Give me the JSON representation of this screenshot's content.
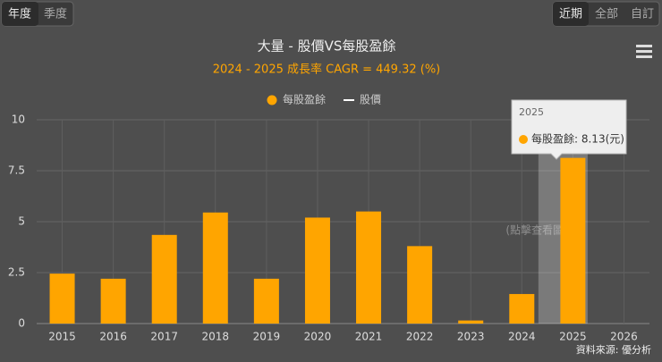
{
  "buttons": {
    "period": [
      "年度",
      "季度"
    ],
    "range": [
      "近期",
      "全部",
      "自訂"
    ]
  },
  "chart_data": {
    "type": "bar",
    "title": "大量 - 股價VS每股盈餘",
    "subtitle": "2024 - 2025 成長率 CAGR = 449.32 (%)",
    "categories": [
      "2015",
      "2016",
      "2017",
      "2018",
      "2019",
      "2020",
      "2021",
      "2022",
      "2023",
      "2024",
      "2025",
      "2026"
    ],
    "series": [
      {
        "name": "每股盈餘",
        "color": "#ffa500",
        "values": [
          2.45,
          2.2,
          4.35,
          5.45,
          2.2,
          5.2,
          5.5,
          3.8,
          0.15,
          1.45,
          8.13,
          null
        ]
      },
      {
        "name": "股價",
        "color": "#ffffff",
        "values": [
          null,
          null,
          null,
          null,
          null,
          null,
          null,
          null,
          null,
          null,
          null,
          null
        ]
      }
    ],
    "ylim": [
      0,
      10
    ],
    "yticks": [
      0,
      2.5,
      5,
      7.5,
      10
    ],
    "grid": true,
    "tooltip": {
      "title": "2025",
      "text": "每股盈餘: 8.13(元)"
    },
    "watermark": "(點擊查看圖表)",
    "source": "資料來源: 優分析"
  }
}
